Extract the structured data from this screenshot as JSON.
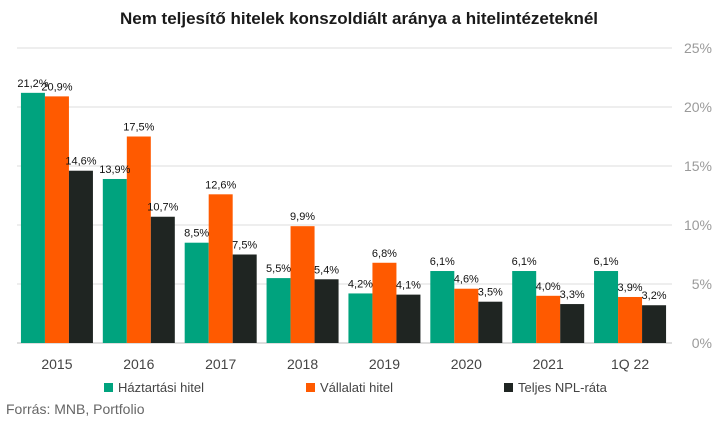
{
  "chart_data": {
    "type": "bar",
    "title": "Nem teljesítő hitelek konszoldiált aránya a hitelintézeteknél",
    "categories": [
      "2015",
      "2016",
      "2017",
      "2018",
      "2019",
      "2020",
      "2021",
      "1Q 22"
    ],
    "series": [
      {
        "name": "Háztartási hitel",
        "color": "#00a37e",
        "values": [
          21.2,
          13.9,
          8.5,
          5.5,
          4.2,
          6.1,
          6.1,
          6.1
        ],
        "labels": [
          "21,2%",
          "13,9%",
          "8,5%",
          "5,5%",
          "4,2%",
          "6,1%",
          "6,1%",
          "6,1%"
        ]
      },
      {
        "name": "Vállalati hitel",
        "color": "#ff5a00",
        "values": [
          20.9,
          17.5,
          12.6,
          9.9,
          6.8,
          4.6,
          4.0,
          3.9
        ],
        "labels": [
          "20,9%",
          "17,5%",
          "12,6%",
          "9,9%",
          "6,8%",
          "4,6%",
          "4,0%",
          "3,9%"
        ]
      },
      {
        "name": "Teljes NPL-ráta",
        "color": "#1f2522",
        "values": [
          14.6,
          10.7,
          7.5,
          5.4,
          4.1,
          3.5,
          3.3,
          3.2
        ],
        "labels": [
          "14,6%",
          "10,7%",
          "7,5%",
          "5,4%",
          "4,1%",
          "3,5%",
          "3,3%",
          "3,2%"
        ]
      }
    ],
    "ylim": [
      0,
      25
    ],
    "yticks": [
      0,
      5,
      10,
      15,
      20,
      25
    ],
    "ytick_labels": [
      "0%",
      "5%",
      "10%",
      "15%",
      "20%",
      "25%"
    ],
    "y_axis_side": "right",
    "grid": true,
    "legend_position": "bottom",
    "source": "Forrás: MNB, Portfolio"
  }
}
